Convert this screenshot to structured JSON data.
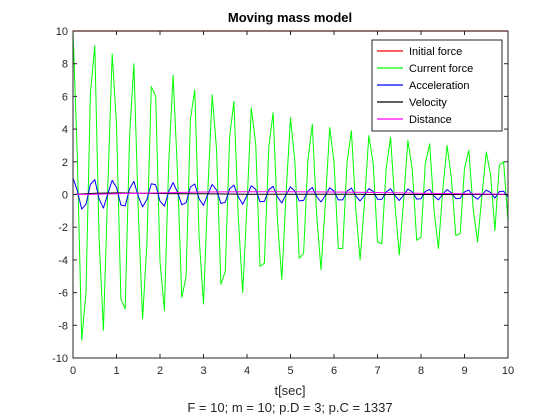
{
  "chart_data": {
    "type": "line",
    "title": "Moving mass model",
    "xlabel": "t[sec]",
    "subtitle": "F = 10; m = 10; p.D = 3; p.C = 1337",
    "ylabel": "",
    "xlim": [
      0,
      10
    ],
    "ylim": [
      -10,
      10
    ],
    "xticks": [
      "0",
      "1",
      "2",
      "3",
      "4",
      "5",
      "6",
      "7",
      "8",
      "9",
      "10"
    ],
    "yticks": [
      "-10",
      "-8",
      "-6",
      "-4",
      "-2",
      "0",
      "2",
      "4",
      "6",
      "8",
      "10"
    ],
    "grid": false,
    "legend_position": "top-right",
    "series": [
      {
        "name": "Initial force",
        "color": "#ff0000",
        "x": [
          0,
          10
        ],
        "y": [
          10,
          10
        ]
      },
      {
        "name": "Current force",
        "color": "#00ff00",
        "x": [
          0,
          0.1,
          0.2,
          0.3,
          0.4,
          0.5,
          0.6,
          0.7,
          0.8,
          0.9,
          1.0,
          1.1,
          1.2,
          1.3,
          1.4,
          1.5,
          1.6,
          1.7,
          1.8,
          1.9,
          2.0,
          2.1,
          2.2,
          2.3,
          2.4,
          2.5,
          2.6,
          2.7,
          2.8,
          2.9,
          3.0,
          3.1,
          3.2,
          3.3,
          3.4,
          3.5,
          3.6,
          3.7,
          3.8,
          3.9,
          4.0,
          4.1,
          4.2,
          4.3,
          4.4,
          4.5,
          4.6,
          4.7,
          4.8,
          4.9,
          5.0,
          5.1,
          5.2,
          5.3,
          5.4,
          5.5,
          5.6,
          5.7,
          5.8,
          5.9,
          6.0,
          6.1,
          6.2,
          6.3,
          6.4,
          6.5,
          6.6,
          6.7,
          6.8,
          6.9,
          7.0,
          7.1,
          7.2,
          7.3,
          7.4,
          7.5,
          7.6,
          7.7,
          7.8,
          7.9,
          8.0,
          8.1,
          8.2,
          8.3,
          8.4,
          8.5,
          8.6,
          8.7,
          8.8,
          8.9,
          9.0,
          9.1,
          9.2,
          9.3,
          9.4,
          9.5,
          9.6,
          9.7,
          9.8,
          9.9,
          10.0
        ],
        "y": [
          10,
          2.4,
          -8.9,
          -6.0,
          6.2,
          9.1,
          -2.7,
          -8.3,
          0.4,
          8.6,
          4.3,
          -6.4,
          -7.0,
          3.6,
          8.0,
          -1.1,
          -7.6,
          -3.0,
          6.6,
          6.0,
          -4.1,
          -7.1,
          1.9,
          7.3,
          1.5,
          -6.3,
          -5.0,
          4.6,
          6.4,
          -2.6,
          -6.7,
          0.2,
          6.1,
          2.8,
          -5.5,
          -4.7,
          3.5,
          5.7,
          -1.4,
          -6.0,
          -0.6,
          5.3,
          3.1,
          -4.4,
          -4.2,
          2.9,
          5.0,
          -1.6,
          -5.2,
          0.2,
          4.7,
          2.0,
          -3.9,
          -3.6,
          2.1,
          4.3,
          -1.2,
          -4.6,
          -0.6,
          4.1,
          2.0,
          -3.3,
          -3.3,
          2.0,
          3.9,
          -0.9,
          -4.0,
          -0.5,
          3.6,
          1.9,
          -2.9,
          -3.0,
          1.6,
          3.5,
          -0.6,
          -3.7,
          -0.4,
          3.3,
          1.5,
          -2.8,
          -2.6,
          1.9,
          3.1,
          -1.0,
          -3.3,
          0.3,
          3.0,
          1.0,
          -2.5,
          -2.4,
          1.6,
          2.7,
          -0.9,
          -2.9,
          -0.1,
          2.6,
          1.2,
          -2.2,
          1.8,
          2.0,
          -1.6
        ]
      },
      {
        "name": "Acceleration",
        "color": "#0000ff",
        "x": [
          0,
          0.1,
          0.2,
          0.3,
          0.4,
          0.5,
          0.6,
          0.7,
          0.8,
          0.9,
          1.0,
          1.1,
          1.2,
          1.3,
          1.4,
          1.5,
          1.6,
          1.7,
          1.8,
          1.9,
          2.0,
          2.1,
          2.2,
          2.3,
          2.4,
          2.5,
          2.6,
          2.7,
          2.8,
          2.9,
          3.0,
          3.1,
          3.2,
          3.3,
          3.4,
          3.5,
          3.6,
          3.7,
          3.8,
          3.9,
          4.0,
          4.1,
          4.2,
          4.3,
          4.4,
          4.5,
          4.6,
          4.7,
          4.8,
          4.9,
          5.0,
          5.1,
          5.2,
          5.3,
          5.4,
          5.5,
          5.6,
          5.7,
          5.8,
          5.9,
          6.0,
          6.1,
          6.2,
          6.3,
          6.4,
          6.5,
          6.6,
          6.7,
          6.8,
          6.9,
          7.0,
          7.1,
          7.2,
          7.3,
          7.4,
          7.5,
          7.6,
          7.7,
          7.8,
          7.9,
          8.0,
          8.1,
          8.2,
          8.3,
          8.4,
          8.5,
          8.6,
          8.7,
          8.8,
          8.9,
          9.0,
          9.1,
          9.2,
          9.3,
          9.4,
          9.5,
          9.6,
          9.7,
          9.8,
          9.9,
          10.0
        ],
        "y": [
          1.0,
          0.24,
          -0.89,
          -0.6,
          0.62,
          0.91,
          -0.27,
          -0.83,
          0.04,
          0.86,
          0.43,
          -0.64,
          -0.7,
          0.36,
          0.8,
          -0.11,
          -0.76,
          -0.3,
          0.66,
          0.6,
          -0.41,
          -0.71,
          0.19,
          0.73,
          0.15,
          -0.63,
          -0.5,
          0.46,
          0.64,
          -0.26,
          -0.67,
          0.02,
          0.61,
          0.28,
          -0.55,
          -0.47,
          0.35,
          0.57,
          -0.14,
          -0.6,
          -0.06,
          0.53,
          0.31,
          -0.44,
          -0.42,
          0.29,
          0.5,
          -0.16,
          -0.52,
          0.02,
          0.47,
          0.2,
          -0.39,
          -0.36,
          0.21,
          0.43,
          -0.12,
          -0.46,
          -0.06,
          0.41,
          0.2,
          -0.33,
          -0.33,
          0.2,
          0.39,
          -0.09,
          -0.4,
          -0.05,
          0.36,
          0.19,
          -0.29,
          -0.3,
          0.16,
          0.35,
          -0.06,
          -0.37,
          -0.04,
          0.33,
          0.15,
          -0.28,
          -0.26,
          0.19,
          0.31,
          -0.1,
          -0.33,
          0.03,
          0.3,
          0.1,
          -0.25,
          -0.24,
          0.16,
          0.27,
          -0.09,
          -0.29,
          -0.01,
          0.26,
          0.12,
          -0.22,
          0.18,
          0.2,
          -0.16
        ]
      },
      {
        "name": "Velocity",
        "color": "#000000",
        "x": [
          0,
          0.5,
          1,
          1.5,
          2,
          2.5,
          3,
          3.5,
          4,
          4.5,
          5,
          5.5,
          6,
          6.5,
          7,
          7.5,
          8,
          8.5,
          9,
          9.5,
          10
        ],
        "y": [
          0,
          0.08,
          0.1,
          0.08,
          0.06,
          0.05,
          0.04,
          0.03,
          0.02,
          0.02,
          0.01,
          0.01,
          0.01,
          0.01,
          0.0,
          0.0,
          0.0,
          0.0,
          0.0,
          0.0,
          0.0
        ]
      },
      {
        "name": "Distance",
        "color": "#ff00ff",
        "x": [
          0,
          0.5,
          1,
          1.5,
          2,
          2.5,
          3,
          3.5,
          4,
          4.5,
          5,
          5.5,
          6,
          6.5,
          7,
          7.5,
          8,
          8.5,
          9,
          9.5,
          10
        ],
        "y": [
          0,
          0.02,
          0.05,
          0.08,
          0.1,
          0.13,
          0.15,
          0.16,
          0.17,
          0.17,
          0.17,
          0.16,
          0.15,
          0.14,
          0.12,
          0.1,
          0.08,
          0.06,
          0.04,
          0.03,
          0.02
        ]
      }
    ]
  }
}
